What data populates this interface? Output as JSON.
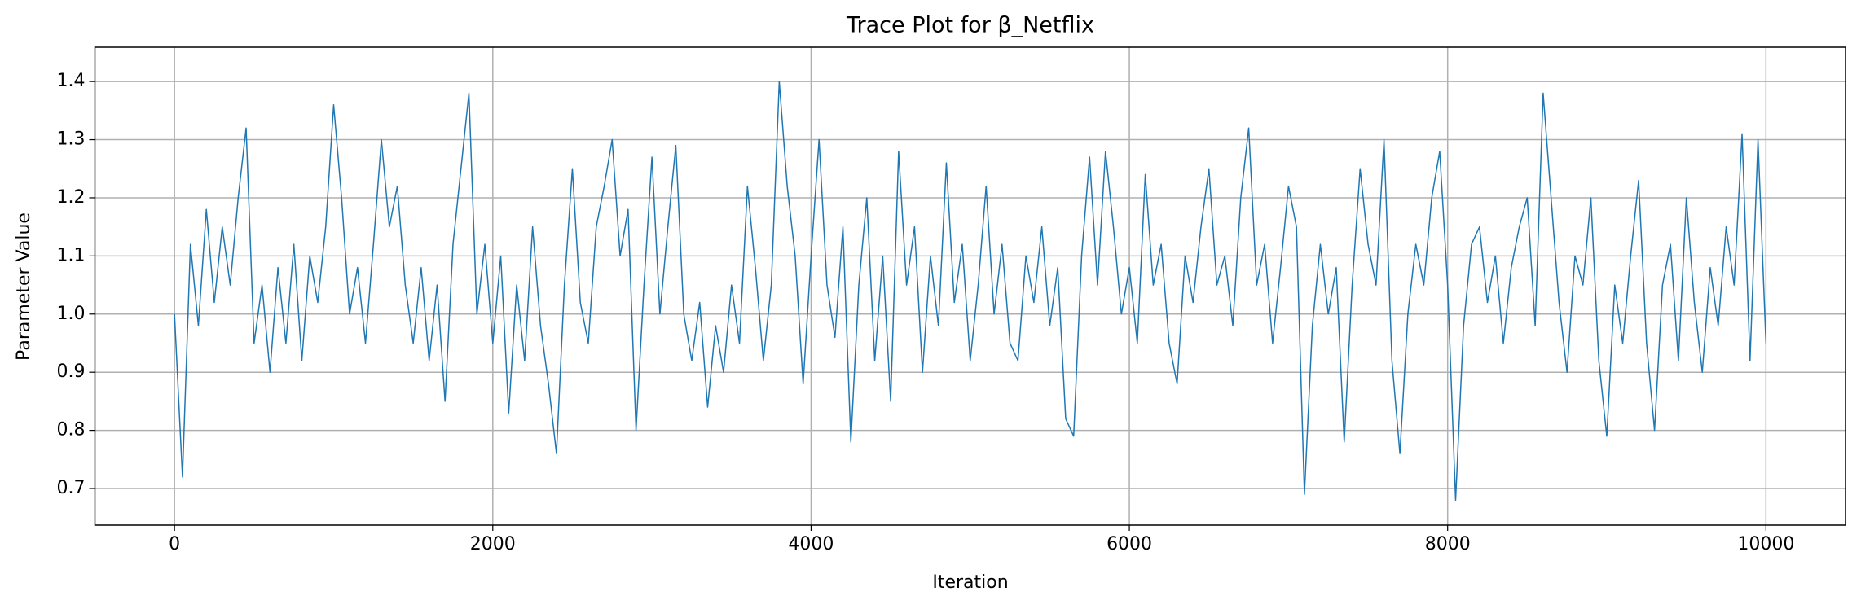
{
  "chart_data": {
    "type": "line",
    "title": "Trace Plot for β_Netflix",
    "x_label": "Iteration",
    "y_label": "Parameter Value",
    "color": "#1f77b4",
    "grid": true,
    "xlim": [
      -500,
      10500
    ],
    "ylim": [
      0.637,
      1.459
    ],
    "xticks": [
      0,
      2000,
      4000,
      6000,
      8000,
      10000
    ],
    "yticks": [
      0.7,
      0.8,
      0.9,
      {
        "value": 1,
        "label": "1.0"
      },
      1.1,
      1.2,
      1.3,
      1.4
    ],
    "x": [
      0,
      50,
      100,
      150,
      200,
      250,
      300,
      350,
      400,
      450,
      500,
      550,
      600,
      650,
      700,
      750,
      800,
      850,
      900,
      950,
      1000,
      1050,
      1100,
      1150,
      1200,
      1250,
      1300,
      1350,
      1400,
      1450,
      1500,
      1550,
      1600,
      1650,
      1700,
      1750,
      1800,
      1850,
      1900,
      1950,
      2000,
      2050,
      2100,
      2150,
      2200,
      2250,
      2300,
      2350,
      2400,
      2450,
      2500,
      2550,
      2600,
      2650,
      2700,
      2750,
      2800,
      2850,
      2900,
      2950,
      3000,
      3050,
      3100,
      3150,
      3200,
      3250,
      3300,
      3350,
      3400,
      3450,
      3500,
      3550,
      3600,
      3650,
      3700,
      3750,
      3800,
      3850,
      3900,
      3950,
      4000,
      4050,
      4100,
      4150,
      4200,
      4250,
      4300,
      4350,
      4400,
      4450,
      4500,
      4550,
      4600,
      4650,
      4700,
      4750,
      4800,
      4850,
      4900,
      4950,
      5000,
      5050,
      5100,
      5150,
      5200,
      5250,
      5300,
      5350,
      5400,
      5450,
      5500,
      5550,
      5600,
      5650,
      5700,
      5750,
      5800,
      5850,
      5900,
      5950,
      6000,
      6050,
      6100,
      6150,
      6200,
      6250,
      6300,
      6350,
      6400,
      6450,
      6500,
      6550,
      6600,
      6650,
      6700,
      6750,
      6800,
      6850,
      6900,
      6950,
      7000,
      7050,
      7100,
      7150,
      7200,
      7250,
      7300,
      7350,
      7400,
      7450,
      7500,
      7550,
      7600,
      7650,
      7700,
      7750,
      7800,
      7850,
      7900,
      7950,
      8000,
      8050,
      8100,
      8150,
      8200,
      8250,
      8300,
      8350,
      8400,
      8450,
      8500,
      8550,
      8600,
      8650,
      8700,
      8750,
      8800,
      8850,
      8900,
      8950,
      9000,
      9050,
      9100,
      9150,
      9200,
      9250,
      9300,
      9350,
      9400,
      9450,
      9500,
      9550,
      9600,
      9650,
      9700,
      9750,
      9800,
      9850,
      9900,
      9950,
      10000
    ],
    "values": [
      1.0,
      0.72,
      1.12,
      0.98,
      1.18,
      1.02,
      1.15,
      1.05,
      1.2,
      1.32,
      0.95,
      1.05,
      0.9,
      1.08,
      0.95,
      1.12,
      0.92,
      1.1,
      1.02,
      1.15,
      1.36,
      1.2,
      1.0,
      1.08,
      0.95,
      1.12,
      1.3,
      1.15,
      1.22,
      1.05,
      0.95,
      1.08,
      0.92,
      1.05,
      0.85,
      1.12,
      1.25,
      1.38,
      1.0,
      1.12,
      0.95,
      1.1,
      0.83,
      1.05,
      0.92,
      1.15,
      0.98,
      0.88,
      0.76,
      1.05,
      1.25,
      1.02,
      0.95,
      1.15,
      1.22,
      1.3,
      1.1,
      1.18,
      0.8,
      1.05,
      1.27,
      1.0,
      1.15,
      1.29,
      1.0,
      0.92,
      1.02,
      0.84,
      0.98,
      0.9,
      1.05,
      0.95,
      1.22,
      1.08,
      0.92,
      1.05,
      1.4,
      1.22,
      1.1,
      0.88,
      1.1,
      1.3,
      1.05,
      0.96,
      1.15,
      0.78,
      1.05,
      1.2,
      0.92,
      1.1,
      0.85,
      1.28,
      1.05,
      1.15,
      0.9,
      1.1,
      0.98,
      1.26,
      1.02,
      1.12,
      0.92,
      1.05,
      1.22,
      1.0,
      1.12,
      0.95,
      0.92,
      1.1,
      1.02,
      1.15,
      0.98,
      1.08,
      0.82,
      0.79,
      1.1,
      1.27,
      1.05,
      1.28,
      1.15,
      1.0,
      1.08,
      0.95,
      1.24,
      1.05,
      1.12,
      0.95,
      0.88,
      1.1,
      1.02,
      1.15,
      1.25,
      1.05,
      1.1,
      0.98,
      1.2,
      1.32,
      1.05,
      1.12,
      0.95,
      1.08,
      1.22,
      1.15,
      0.69,
      0.98,
      1.12,
      1.0,
      1.08,
      0.78,
      1.05,
      1.25,
      1.12,
      1.05,
      1.3,
      0.92,
      0.76,
      1.0,
      1.12,
      1.05,
      1.2,
      1.28,
      1.05,
      0.68,
      0.98,
      1.12,
      1.15,
      1.02,
      1.1,
      0.95,
      1.08,
      1.15,
      1.2,
      0.98,
      1.38,
      1.2,
      1.02,
      0.9,
      1.1,
      1.05,
      1.2,
      0.92,
      0.79,
      1.05,
      0.95,
      1.1,
      1.23,
      0.95,
      0.8,
      1.05,
      1.12,
      0.92,
      1.2,
      1.02,
      0.9,
      1.08,
      0.98,
      1.15,
      1.05,
      1.31,
      0.92,
      1.3,
      0.95
    ]
  }
}
